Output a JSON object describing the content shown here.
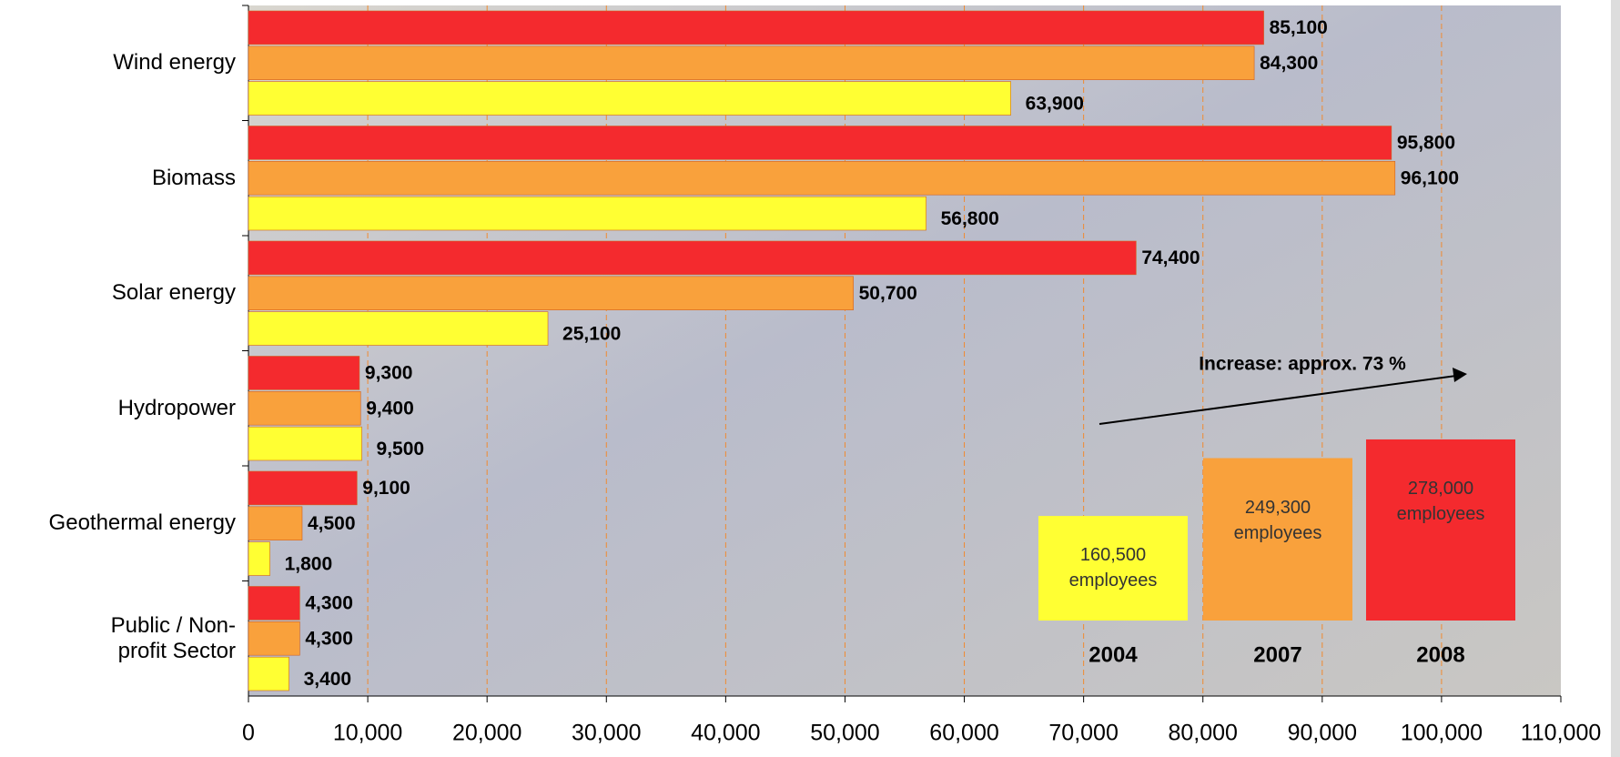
{
  "chart_data": {
    "type": "bar",
    "orientation": "horizontal",
    "categories": [
      "Wind energy",
      "Biomass",
      "Solar energy",
      "Hydropower",
      "Geothermal energy",
      "Public / Non-profit Sector"
    ],
    "series": [
      {
        "name": "2008",
        "color": "#f42a2e",
        "values": [
          85100,
          95800,
          74400,
          9300,
          9100,
          4300
        ],
        "value_labels": [
          "85,100",
          "95,800",
          "74,400",
          "9,300",
          "9,100",
          "4,300"
        ],
        "total": {
          "value": 278000,
          "label": "278,000"
        }
      },
      {
        "name": "2007",
        "color": "#f9a13c",
        "values": [
          84300,
          96100,
          50700,
          9400,
          4500,
          4300
        ],
        "value_labels": [
          "84,300",
          "96,100",
          "50,700",
          "9,400",
          "4,500",
          "4,300"
        ],
        "total": {
          "value": 249300,
          "label": "249,300"
        }
      },
      {
        "name": "2004",
        "color": "#ffff33",
        "values": [
          63900,
          56800,
          25100,
          9500,
          1800,
          3400
        ],
        "value_labels": [
          "63,900",
          "56,800",
          "25,100",
          "9,500",
          "1,800",
          "3,400"
        ],
        "total": {
          "value": 160500,
          "label": "160,500"
        }
      }
    ],
    "total_unit": "employees",
    "annotation": "Increase: approx. 73 %",
    "xlim": [
      0,
      110000
    ],
    "xticks": [
      0,
      {
        "value": 10000,
        "label": "10,000"
      },
      {
        "value": 20000,
        "label": "20,000"
      },
      {
        "value": 30000,
        "label": "30,000"
      },
      {
        "value": 40000,
        "label": "40,000"
      },
      {
        "value": 50000,
        "label": "50,000"
      },
      {
        "value": 60000,
        "label": "60,000"
      },
      {
        "value": 70000,
        "label": "70,000"
      },
      {
        "value": 80000,
        "label": "80,000"
      },
      {
        "value": 90000,
        "label": "90,000"
      },
      {
        "value": 100000,
        "label": "100,000"
      },
      {
        "value": 110000,
        "label": "110,000"
      }
    ],
    "grid": true
  }
}
